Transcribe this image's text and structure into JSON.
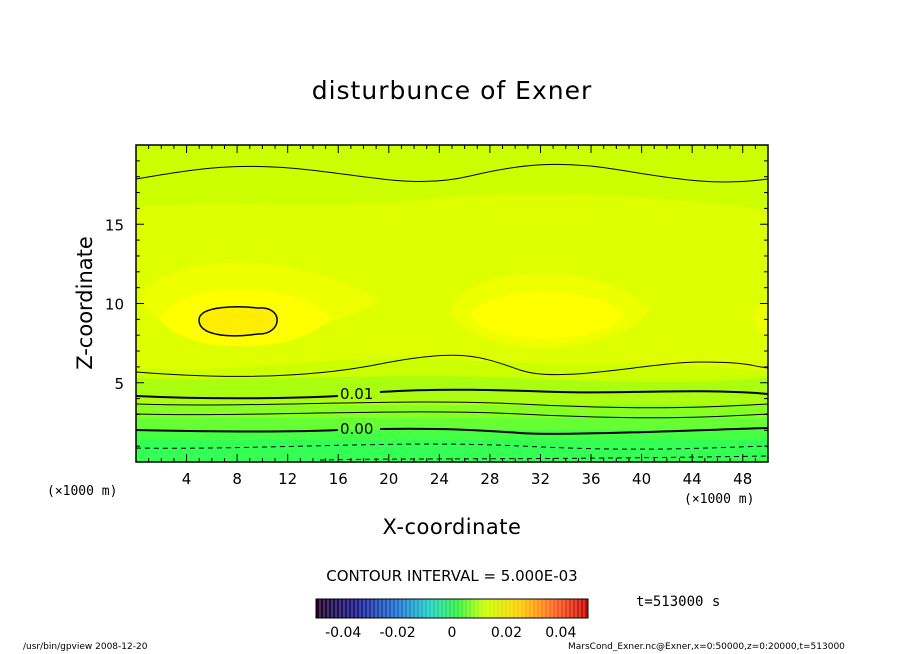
{
  "chart_data": {
    "type": "contour",
    "title": "disturbunce of Exner",
    "xlabel": "X-coordinate",
    "ylabel": "Z-coordinate",
    "x_unit": "(×1000 m)",
    "y_unit": "(×1000 m)",
    "xlim": [
      0,
      50
    ],
    "ylim": [
      0,
      20
    ],
    "x_ticks": [
      4,
      8,
      12,
      16,
      20,
      24,
      28,
      32,
      36,
      40,
      44,
      48
    ],
    "y_ticks": [
      5,
      10,
      15
    ],
    "contour_interval_label": "CONTOUR INTERVAL = 5.000E-03",
    "contour_labels": [
      {
        "text": "0.01",
        "x": 22,
        "z": 4.5
      },
      {
        "text": "0.00",
        "x": 22,
        "z": 2.2
      }
    ],
    "colorbar": {
      "ticks": [
        "-0.04",
        "-0.02",
        "0",
        "0.02",
        "0.04"
      ],
      "range": [
        -0.05,
        0.05
      ]
    },
    "time_label": "t=513000 s",
    "footer_left": "/usr/bin/gpview   2008-12-20",
    "footer_right": "MarsCond_Exner.nc@Exner,x=0:50000,z=0:20000,t=513000"
  }
}
